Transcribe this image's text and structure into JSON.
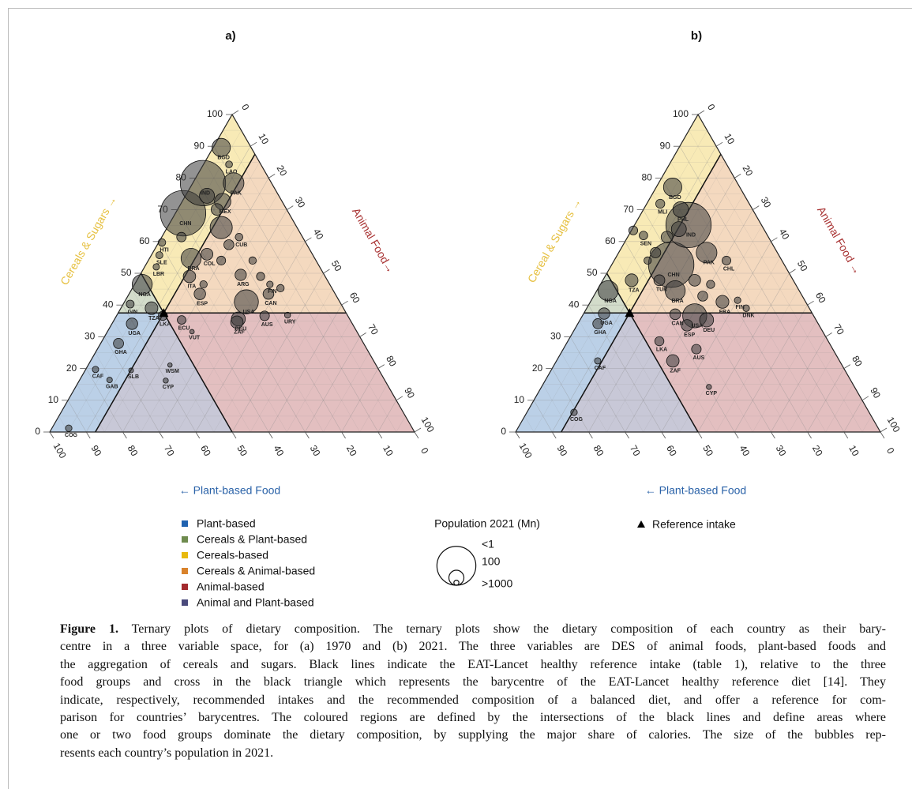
{
  "chart_data": [
    {
      "type": "ternary",
      "title": "a)",
      "cereals_title": "Cereals & Sugars →",
      "animal_title": "Animal Food→",
      "plant_title": "← Plant-based Food",
      "cereals_ticks": [
        0,
        10,
        20,
        30,
        40,
        50,
        60,
        70,
        80,
        90,
        100
      ],
      "animal_ticks": [
        0,
        10,
        20,
        30,
        40,
        50,
        60,
        70,
        80,
        90,
        100
      ],
      "plant_ticks": [
        0,
        10,
        20,
        30,
        40,
        50,
        60,
        70,
        80,
        90,
        100
      ],
      "reference": {
        "cereals": 37.5,
        "animal": 12.5,
        "plant": 50
      },
      "points": [
        {
          "label": "BGD",
          "cereals": 89.6,
          "animal": 2.2,
          "plant": 8.2,
          "population": 170
        },
        {
          "label": "LAO",
          "cereals": 84.3,
          "animal": 7.0,
          "plant": 8.7,
          "population": 7
        },
        {
          "label": "IND",
          "cereals": 78.4,
          "animal": 2.8,
          "plant": 18.8,
          "population": 1400
        },
        {
          "label": "PAK",
          "cereals": 78.4,
          "animal": 11.2,
          "plant": 10.4,
          "population": 230
        },
        {
          "label": "CHN",
          "cereals": 68.9,
          "animal": 2.1,
          "plant": 29.0,
          "population": 1410
        },
        {
          "label": "MEX",
          "cereals": 72.6,
          "animal": 11.1,
          "plant": 16.3,
          "population": 127
        },
        {
          "label": null,
          "cereals": 64.4,
          "animal": 14.8,
          "plant": 20.8,
          "population": 273
        },
        {
          "label": "HTI",
          "cereals": 59.7,
          "animal": 0.9,
          "plant": 39.4,
          "population": 11
        },
        {
          "label": "SLE",
          "cereals": 55.7,
          "animal": 2.2,
          "plant": 42.1,
          "population": 8
        },
        {
          "label": "LBR",
          "cereals": 52.0,
          "animal": 3.2,
          "plant": 44.8,
          "population": 5
        },
        {
          "label": "NGA",
          "cereals": 46.5,
          "animal": 2.1,
          "plant": 51.4,
          "population": 213
        },
        {
          "label": "BRA",
          "cereals": 54.7,
          "animal": 11.4,
          "plant": 33.9,
          "population": 214
        },
        {
          "label": "COL",
          "cereals": 56.0,
          "animal": 15.1,
          "plant": 28.9,
          "population": 51
        },
        {
          "label": "ITA",
          "cereals": 49.0,
          "animal": 13.8,
          "plant": 37.2,
          "population": 59
        },
        {
          "label": "CUB",
          "cereals": 61.4,
          "animal": 21.2,
          "plant": 17.4,
          "population": 11
        },
        {
          "label": "ARG",
          "cereals": 49.5,
          "animal": 27.6,
          "plant": 22.9,
          "population": 45
        },
        {
          "label": "ESP",
          "cereals": 43.5,
          "animal": 19.4,
          "plant": 37.1,
          "population": 47
        },
        {
          "label": "USA",
          "cereals": 41.0,
          "animal": 33.4,
          "plant": 25.6,
          "population": 332
        },
        {
          "label": "CAN",
          "cereals": 43.5,
          "animal": 38.2,
          "plant": 18.3,
          "population": 38
        },
        {
          "label": "FIN",
          "cereals": 46.5,
          "animal": 37.1,
          "plant": 16.4,
          "population": 5.5
        },
        {
          "label": "DEU",
          "cereals": 35.6,
          "animal": 33.9,
          "plant": 30.5,
          "population": 83
        },
        {
          "label": "AUS",
          "cereals": 36.6,
          "animal": 40.6,
          "plant": 22.8,
          "population": 26
        },
        {
          "label": "URY",
          "cereals": 36.8,
          "animal": 46.8,
          "plant": 16.4,
          "population": 3.5
        },
        {
          "label": "ZAF",
          "cereals": 34.6,
          "animal": 34.0,
          "plant": 31.4,
          "population": 60
        },
        {
          "label": "ECU",
          "cereals": 35.3,
          "animal": 18.5,
          "plant": 46.2,
          "population": 18
        },
        {
          "label": "VUT",
          "cereals": 31.6,
          "animal": 23.2,
          "plant": 45.2,
          "population": 0.3
        },
        {
          "label": "WSM",
          "cereals": 21.1,
          "animal": 22.4,
          "plant": 56.5,
          "population": 0.2
        },
        {
          "label": "CYP",
          "cereals": 16.2,
          "animal": 23.7,
          "plant": 60.1,
          "population": 1.2
        },
        {
          "label": "SLB",
          "cereals": 19.4,
          "animal": 12.6,
          "plant": 68.0,
          "population": 0.7
        },
        {
          "label": "LKA",
          "cereals": 36.6,
          "animal": 12.7,
          "plant": 50.7,
          "population": 22
        },
        {
          "label": "TZA",
          "cereals": 39.0,
          "animal": 8.4,
          "plant": 52.6,
          "population": 63
        },
        {
          "label": "GIN",
          "cereals": 40.3,
          "animal": 1.9,
          "plant": 57.8,
          "population": 13
        },
        {
          "label": "UGA",
          "cereals": 34.1,
          "animal": 5.5,
          "plant": 60.4,
          "population": 46
        },
        {
          "label": "GHA",
          "cereals": 27.9,
          "animal": 4.9,
          "plant": 67.2,
          "population": 32
        },
        {
          "label": "CAF",
          "cereals": 19.7,
          "animal": 2.7,
          "plant": 77.6,
          "population": 5
        },
        {
          "label": "GAB",
          "cereals": 16.4,
          "animal": 8.2,
          "plant": 75.4,
          "population": 2.3
        },
        {
          "label": "COG",
          "cereals": 1.2,
          "animal": 4.6,
          "plant": 94.2,
          "population": 5.7
        },
        {
          "label": null,
          "cereals": 74.4,
          "animal": 5.9,
          "plant": 19.7,
          "population": 100
        },
        {
          "label": null,
          "cereals": 70.1,
          "animal": 10.8,
          "plant": 19.1,
          "population": 50
        },
        {
          "label": null,
          "cereals": 59.0,
          "animal": 19.6,
          "plant": 21.4,
          "population": 30
        },
        {
          "label": null,
          "cereals": 61.4,
          "animal": 5.4,
          "plant": 33.2,
          "population": 25
        },
        {
          "label": null,
          "cereals": 46.5,
          "animal": 18.9,
          "plant": 34.6,
          "population": 10
        },
        {
          "label": null,
          "cereals": 54.0,
          "animal": 28.6,
          "plant": 17.4,
          "population": 10
        },
        {
          "label": null,
          "cereals": 49.0,
          "animal": 33.3,
          "plant": 17.7,
          "population": 15
        },
        {
          "label": null,
          "cereals": 45.3,
          "animal": 40.6,
          "plant": 14.1,
          "population": 10
        },
        {
          "label": null,
          "cereals": 54.0,
          "animal": 20.0,
          "plant": 26.0,
          "population": 20
        }
      ]
    },
    {
      "type": "ternary",
      "title": "b)",
      "cereals_title": "Cereal & Sugars →",
      "animal_title": "Animal Food →",
      "plant_title": "← Plant-based Food",
      "cereals_ticks": [
        0,
        10,
        20,
        30,
        40,
        50,
        60,
        70,
        80,
        90,
        100
      ],
      "animal_ticks": [
        0,
        10,
        20,
        30,
        40,
        50,
        60,
        70,
        80,
        90,
        100
      ],
      "plant_ticks": [
        0,
        10,
        20,
        30,
        40,
        50,
        60,
        70,
        80,
        90,
        100
      ],
      "reference": {
        "cereals": 37.5,
        "animal": 12.5,
        "plant": 50
      },
      "points": [
        {
          "label": "BGD",
          "cereals": 77.1,
          "animal": 4.5,
          "plant": 18.4,
          "population": 170
        },
        {
          "label": "MLI",
          "cereals": 71.9,
          "animal": 3.7,
          "plant": 24.4,
          "population": 21
        },
        {
          "label": "PHL",
          "cereals": 70.1,
          "animal": 10.2,
          "plant": 19.7,
          "population": 111
        },
        {
          "label": "IND",
          "cereals": 65.2,
          "animal": 14.8,
          "plant": 20.0,
          "population": 1400
        },
        {
          "label": "SEN",
          "cereals": 61.9,
          "animal": 4.1,
          "plant": 34.0,
          "population": 17
        },
        {
          "label": "PAK",
          "cereals": 56.5,
          "animal": 24.1,
          "plant": 19.4,
          "population": 230
        },
        {
          "label": "CHL",
          "cereals": 54.0,
          "animal": 30.8,
          "plant": 15.2,
          "population": 19
        },
        {
          "label": "CHN",
          "cereals": 52.7,
          "animal": 16.3,
          "plant": 31.0,
          "population": 1410
        },
        {
          "label": "NGA",
          "cereals": 44.5,
          "animal": 3.1,
          "plant": 52.4,
          "population": 213
        },
        {
          "label": "TZA",
          "cereals": 47.8,
          "animal": 7.9,
          "plant": 44.3,
          "population": 63
        },
        {
          "label": "TUR",
          "cereals": 47.8,
          "animal": 15.5,
          "plant": 36.7,
          "population": 40
        },
        {
          "label": "BRA",
          "cereals": 44.5,
          "animal": 21.5,
          "plant": 34.0,
          "population": 214
        },
        {
          "label": "FRA",
          "cereals": 41.0,
          "animal": 36.2,
          "plant": 22.8,
          "population": 65
        },
        {
          "label": "FIN",
          "cereals": 41.5,
          "animal": 40.1,
          "plant": 18.4,
          "population": 5.5
        },
        {
          "label": "DNK",
          "cereals": 39.0,
          "animal": 43.7,
          "plant": 17.3,
          "population": 5.9
        },
        {
          "label": "USA",
          "cereals": 36.6,
          "animal": 30.8,
          "plant": 32.6,
          "population": 332
        },
        {
          "label": "CAN",
          "cereals": 37.1,
          "animal": 25.2,
          "plant": 37.7,
          "population": 38
        },
        {
          "label": "ESP",
          "cereals": 33.6,
          "animal": 30.2,
          "plant": 36.2,
          "population": 47
        },
        {
          "label": "DEU",
          "cereals": 35.3,
          "animal": 34.7,
          "plant": 30.0,
          "population": 83
        },
        {
          "label": "LKA",
          "cereals": 28.6,
          "animal": 25.1,
          "plant": 46.3,
          "population": 22
        },
        {
          "label": "AUS",
          "cereals": 26.1,
          "animal": 36.5,
          "plant": 37.4,
          "population": 26
        },
        {
          "label": "ZAF",
          "cereals": 22.4,
          "animal": 31.9,
          "plant": 45.7,
          "population": 60
        },
        {
          "label": "CYP",
          "cereals": 14.2,
          "animal": 45.9,
          "plant": 39.9,
          "population": 1.2
        },
        {
          "label": "UGA",
          "cereals": 37.3,
          "animal": 5.6,
          "plant": 57.1,
          "population": 46
        },
        {
          "label": "GHA",
          "cereals": 34.1,
          "animal": 5.5,
          "plant": 60.4,
          "population": 32
        },
        {
          "label": "CAF",
          "cereals": 22.4,
          "animal": 11.3,
          "plant": 66.3,
          "population": 5
        },
        {
          "label": "COG",
          "cereals": 6.2,
          "animal": 12.9,
          "plant": 80.9,
          "population": 5.7
        },
        {
          "label": null,
          "cereals": 61.4,
          "animal": 10.8,
          "plant": 27.8,
          "population": 50
        },
        {
          "label": null,
          "cereals": 63.9,
          "animal": 12.8,
          "plant": 23.3,
          "population": 100
        },
        {
          "label": null,
          "cereals": 56.5,
          "animal": 10.1,
          "plant": 33.4,
          "population": 35
        },
        {
          "label": null,
          "cereals": 47.8,
          "animal": 25.2,
          "plant": 27.0,
          "population": 50
        },
        {
          "label": null,
          "cereals": 46.5,
          "animal": 30.2,
          "plant": 23.3,
          "population": 15
        },
        {
          "label": null,
          "cereals": 63.5,
          "animal": 0.5,
          "plant": 36.0,
          "population": 20
        },
        {
          "label": null,
          "cereals": 54.0,
          "animal": 9.2,
          "plant": 36.8,
          "population": 10
        },
        {
          "label": null,
          "cereals": 42.8,
          "animal": 29.9,
          "plant": 27.3,
          "population": 30
        }
      ]
    }
  ],
  "legend": {
    "regions": [
      {
        "name": "Plant-based",
        "color": "#1f62b0"
      },
      {
        "name": "Cereals & Plant-based",
        "color": "#6e8b4e"
      },
      {
        "name": "Cereals-based",
        "color": "#e8b90d"
      },
      {
        "name": "Cereals & Animal-based",
        "color": "#d9822b"
      },
      {
        "name": "Animal-based",
        "color": "#a32a2e"
      },
      {
        "name": "Animal and Plant-based",
        "color": "#4a4a7c"
      }
    ],
    "size_title": "Population 2021 (Mn)",
    "sizes": [
      {
        "value": 1,
        "label": "<1"
      },
      {
        "value": 100,
        "label": "100"
      },
      {
        "value": 1000,
        "label": ">1000"
      }
    ],
    "reference_label": "Reference intake"
  },
  "caption": {
    "label": "Figure 1.",
    "lines": [
      " Ternary plots of dietary composition. The ternary plots show the dietary composition of each country as their bary-",
      "centre in a three variable space, for (a) 1970 and (b) 2021. The three variables are DES of animal foods, plant-based foods and",
      "the aggregation of cereals and sugars. Black lines indicate the EAT-Lancet healthy reference intake (table 1), relative to the three",
      "food groups and cross in the black triangle which represents the barycentre of the EAT-Lancet healthy reference diet [14]. They",
      "indicate, respectively, recommended intakes and the recommended composition of a balanced diet, and offer a reference for com-",
      "parison for countries’ barycentres. The coloured regions are defined by the intersections of the black lines and define areas where",
      "one or two food groups dominate the dietary composition, by supplying the major share of calories. The size of the bubbles rep-",
      "resents each country’s population in 2021."
    ]
  }
}
